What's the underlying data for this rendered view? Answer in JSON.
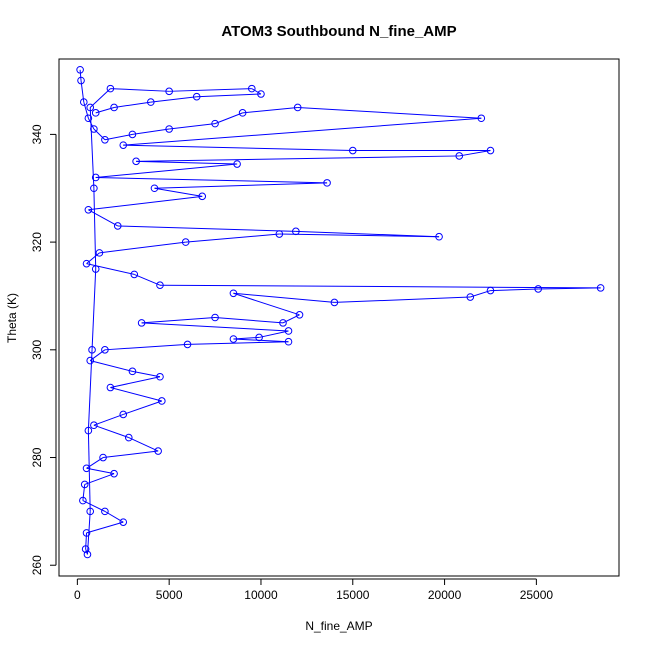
{
  "chart_data": {
    "type": "line",
    "title": "ATOM3 Southbound N_fine_AMP",
    "xlabel": "N_fine_AMP",
    "ylabel": "Theta (K)",
    "xlim": [
      -1000,
      29500
    ],
    "ylim": [
      258,
      354
    ],
    "xticks": [
      0,
      5000,
      10000,
      15000,
      20000,
      25000
    ],
    "yticks": [
      260,
      280,
      300,
      320,
      340
    ],
    "grid": false,
    "series_color": "#0000ff",
    "marker": "open-circle",
    "series": [
      {
        "name": "",
        "points": [
          [
            150,
            352
          ],
          [
            200,
            350
          ],
          [
            350,
            346
          ],
          [
            600,
            343
          ],
          [
            900,
            341
          ],
          [
            1500,
            339
          ],
          [
            3000,
            340
          ],
          [
            5000,
            341
          ],
          [
            7500,
            342
          ],
          [
            9000,
            344
          ],
          [
            12000,
            345
          ],
          [
            22000,
            343
          ],
          [
            2500,
            338
          ],
          [
            15000,
            337
          ],
          [
            22500,
            337
          ],
          [
            20800,
            336
          ],
          [
            3200,
            335
          ],
          [
            8700,
            334.5
          ],
          [
            1000,
            332
          ],
          [
            13600,
            331
          ],
          [
            4200,
            330
          ],
          [
            6800,
            328.5
          ],
          [
            600,
            326
          ],
          [
            2200,
            323
          ],
          [
            11900,
            322
          ],
          [
            19700,
            321
          ],
          [
            11000,
            321.5
          ],
          [
            5900,
            320
          ],
          [
            1200,
            318
          ],
          [
            500,
            316
          ],
          [
            3100,
            314
          ],
          [
            4500,
            312
          ],
          [
            28500,
            311.5
          ],
          [
            25100,
            311.3
          ],
          [
            22500,
            311
          ],
          [
            21400,
            309.8
          ],
          [
            14000,
            308.8
          ],
          [
            8500,
            310.5
          ],
          [
            12100,
            306.5
          ],
          [
            11200,
            305
          ],
          [
            7500,
            306
          ],
          [
            3500,
            305
          ],
          [
            11500,
            303.5
          ],
          [
            9900,
            302.3
          ],
          [
            8500,
            302
          ],
          [
            11500,
            301.5
          ],
          [
            6000,
            301
          ],
          [
            1500,
            300
          ],
          [
            700,
            298
          ],
          [
            3000,
            296
          ],
          [
            4500,
            295
          ],
          [
            1800,
            293
          ],
          [
            4600,
            290.5
          ],
          [
            2500,
            288
          ],
          [
            900,
            286
          ],
          [
            2800,
            283.7
          ],
          [
            4400,
            281.2
          ],
          [
            1400,
            280
          ],
          [
            500,
            278
          ],
          [
            2000,
            277
          ],
          [
            400,
            275
          ],
          [
            300,
            272
          ],
          [
            1500,
            270
          ],
          [
            2500,
            268
          ],
          [
            500,
            266
          ],
          [
            450,
            263
          ],
          [
            550,
            262
          ],
          [
            700,
            270
          ],
          [
            600,
            285
          ],
          [
            800,
            300
          ],
          [
            1000,
            315
          ],
          [
            900,
            330
          ],
          [
            700,
            345
          ],
          [
            1800,
            348.5
          ],
          [
            5000,
            348
          ],
          [
            9500,
            348.5
          ],
          [
            10000,
            347.5
          ],
          [
            6500,
            347
          ],
          [
            4000,
            346
          ],
          [
            2000,
            345
          ],
          [
            1000,
            344
          ]
        ]
      }
    ]
  }
}
